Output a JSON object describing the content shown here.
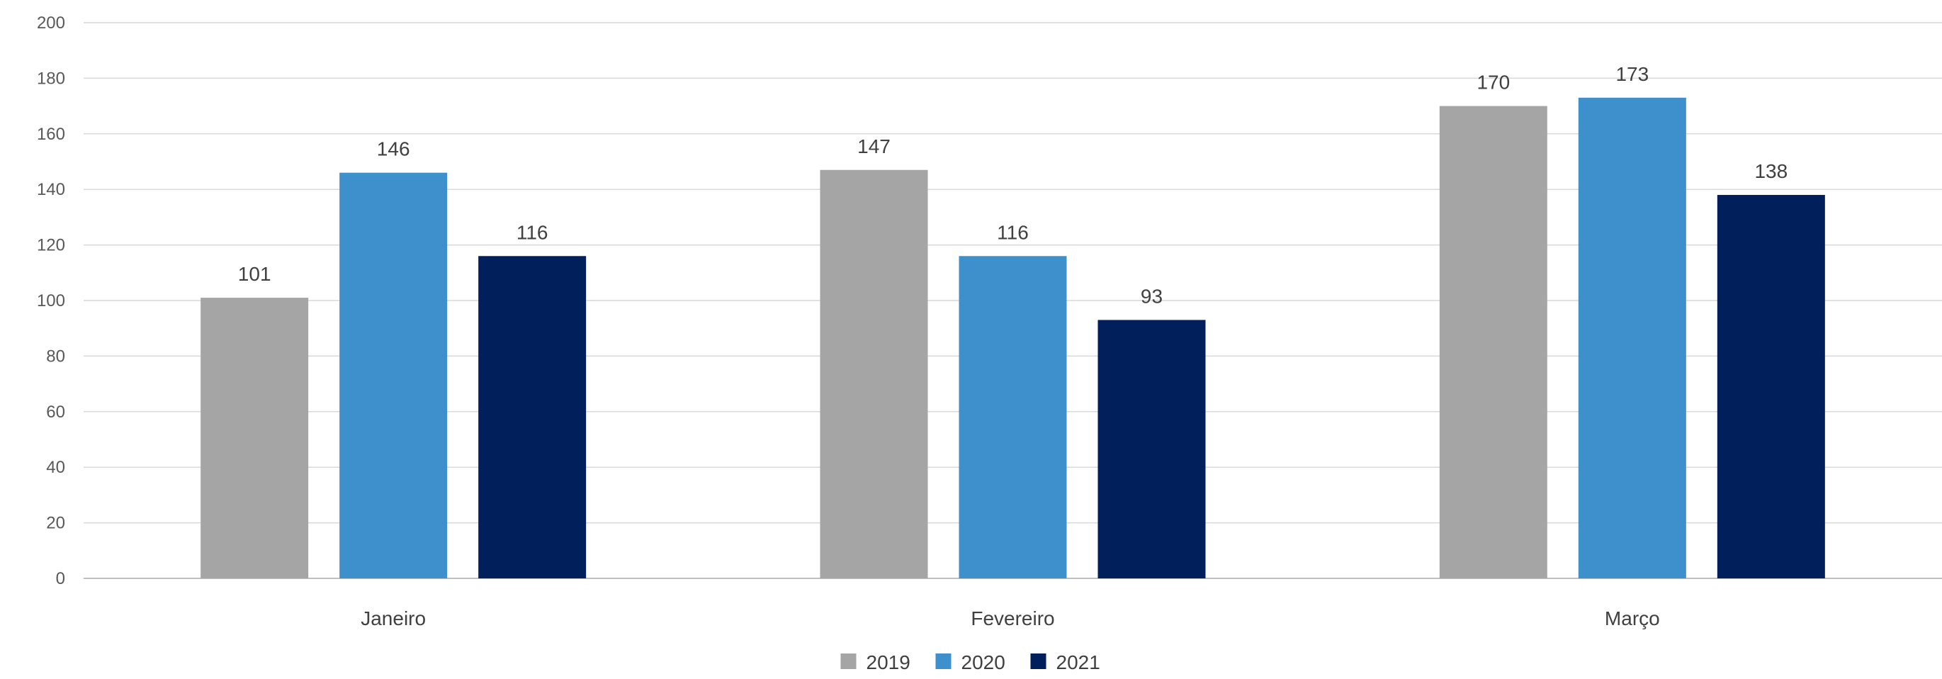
{
  "chart_data": {
    "type": "bar",
    "title": "",
    "xlabel": "",
    "ylabel": "",
    "categories": [
      "Janeiro",
      "Fevereiro",
      "Março"
    ],
    "series": [
      {
        "name": "2019",
        "values": [
          101,
          147,
          170
        ],
        "color": "#a5a5a5"
      },
      {
        "name": "2020",
        "values": [
          146,
          116,
          173
        ],
        "color": "#3e90cc"
      },
      {
        "name": "2021",
        "values": [
          116,
          93,
          138
        ],
        "color": "#001f5b"
      }
    ],
    "ylim": [
      0,
      200
    ],
    "yticks": [
      0,
      20,
      40,
      60,
      80,
      100,
      120,
      140,
      160,
      180,
      200
    ],
    "grid": true,
    "legend_position": "bottom",
    "data_labels": true
  }
}
